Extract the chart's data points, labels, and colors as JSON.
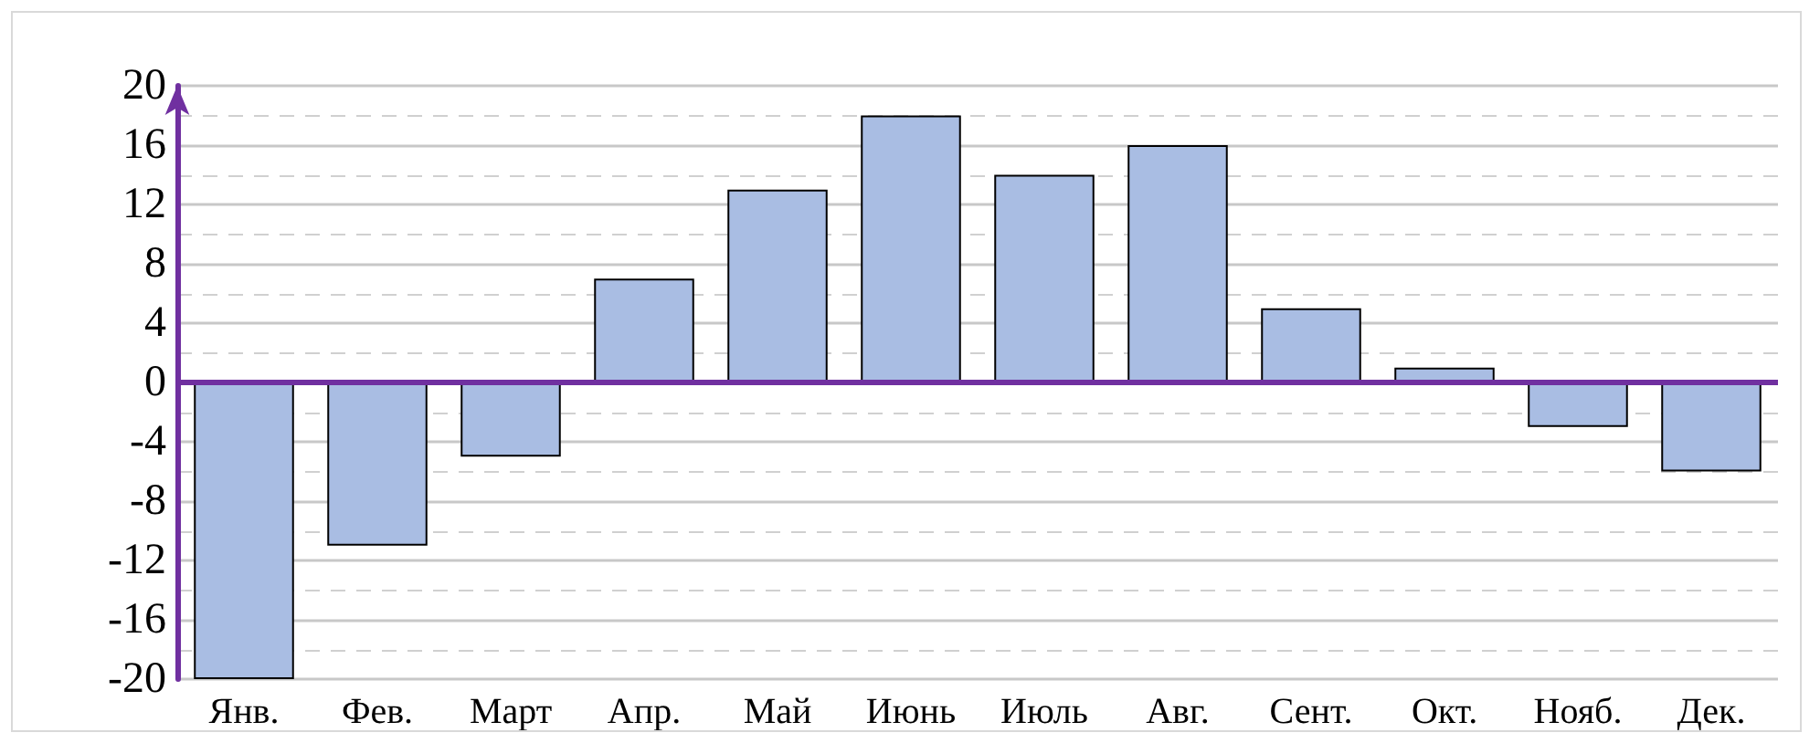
{
  "chart_data": {
    "type": "bar",
    "categories": [
      "Янв.",
      "Фев.",
      "Март",
      "Апр.",
      "Май",
      "Июнь",
      "Июль",
      "Авг.",
      "Сент.",
      "Окт.",
      "Нояб.",
      "Дек."
    ],
    "values": [
      -20,
      -11,
      -5,
      7,
      13,
      18,
      14,
      16,
      5,
      1,
      -3,
      -6
    ],
    "color": "#a9bde3",
    "ylim": [
      -20,
      20
    ],
    "yticks": [
      -20,
      -16,
      -12,
      -8,
      -4,
      0,
      4,
      8,
      12,
      16,
      20
    ],
    "grid": "y",
    "ref_lines": [
      {
        "axis": "y",
        "value": 0,
        "color": "#7030a0"
      }
    ]
  }
}
